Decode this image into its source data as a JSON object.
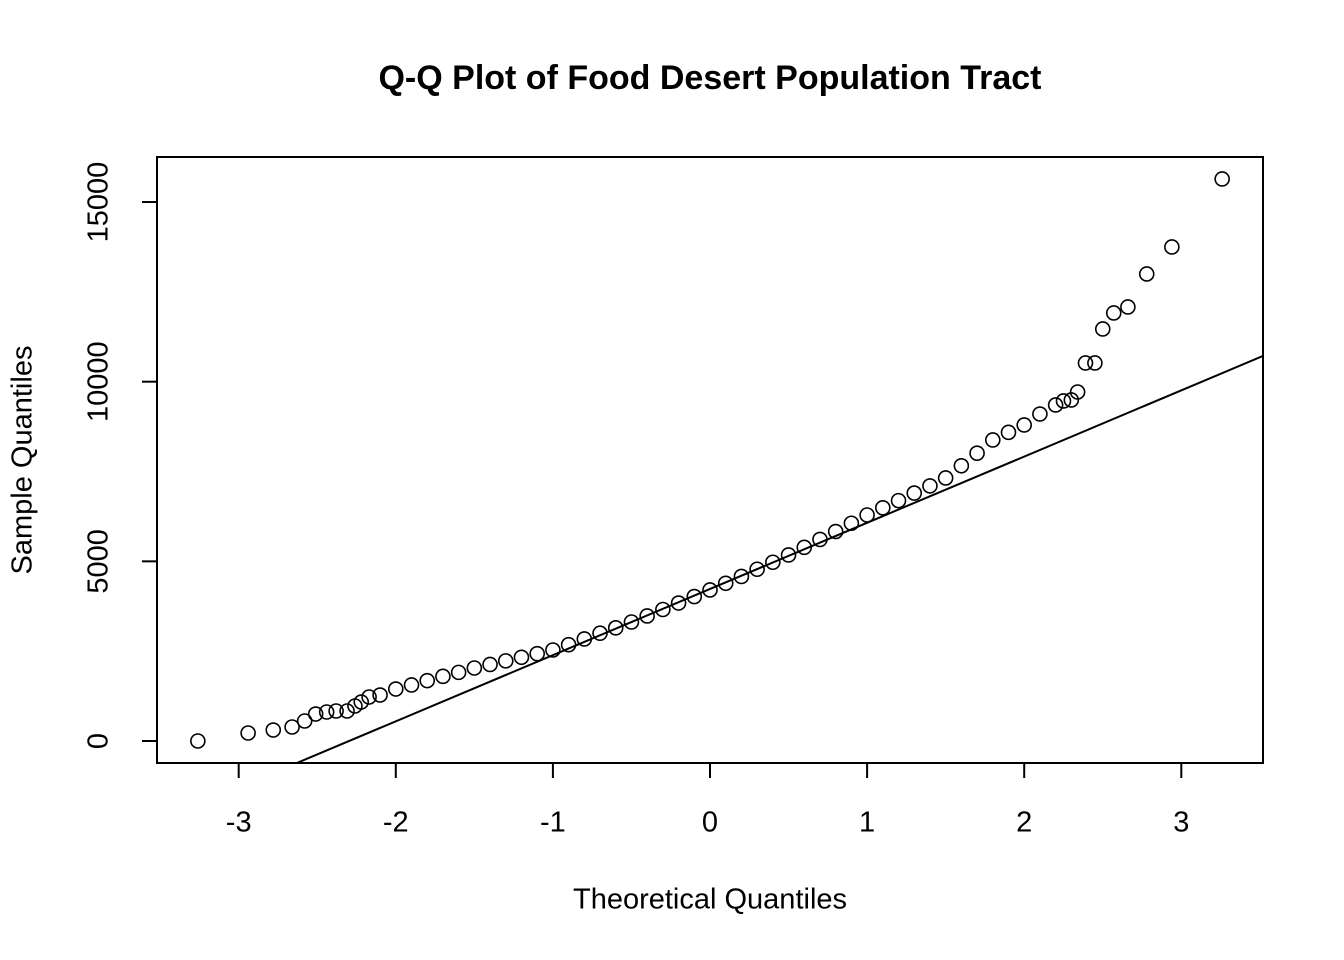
{
  "chart_data": {
    "type": "scatter",
    "title": "Q-Q Plot of Food Desert Population Tract",
    "x_label": "Theoretical Quantiles",
    "y_label": "Sample Quantiles",
    "x": [
      -3.26,
      -2.94,
      -2.78,
      -2.66,
      -2.58,
      -2.51,
      -2.44,
      -2.38,
      -2.31,
      -2.26,
      -2.22,
      -2.17,
      -2.1,
      -2.0,
      -1.9,
      -1.8,
      -1.7,
      -1.6,
      -1.5,
      -1.4,
      -1.3,
      -1.2,
      -1.1,
      -1.0,
      -0.9,
      -0.8,
      -0.7,
      -0.6,
      -0.5,
      -0.4,
      -0.3,
      -0.2,
      -0.1,
      0,
      0.1,
      0.2,
      0.3,
      0.4,
      0.5,
      0.6,
      0.7,
      0.8,
      0.9,
      1.0,
      1.1,
      1.2,
      1.3,
      1.4,
      1.5,
      1.6,
      1.7,
      1.8,
      1.9,
      2.0,
      2.1,
      2.2,
      2.25,
      2.3,
      2.34,
      2.39,
      2.45,
      2.5,
      2.57,
      2.66,
      2.78,
      2.94,
      3.26
    ],
    "y": [
      0,
      223,
      306,
      390,
      557,
      751,
      807,
      835,
      835,
      974,
      1085,
      1225,
      1280,
      1447,
      1560,
      1680,
      1800,
      1910,
      2032,
      2130,
      2230,
      2330,
      2430,
      2533,
      2680,
      2840,
      3000,
      3150,
      3312,
      3480,
      3660,
      3840,
      4020,
      4203,
      4390,
      4580,
      4780,
      4975,
      5177,
      5390,
      5610,
      5830,
      6060,
      6290,
      6490,
      6690,
      6900,
      7100,
      7320,
      7660,
      8010,
      8378,
      8590,
      8795,
      9100,
      9352,
      9463,
      9491,
      9713,
      10521,
      10521,
      11467,
      11912,
      12079,
      12998,
      13749,
      15642
    ],
    "color": "#000000",
    "reference_line": {
      "intercept": 4232,
      "slope": 1842
    },
    "xlim": [
      -3.52,
      3.52
    ],
    "ylim": [
      -612,
      16253
    ],
    "xticks": [
      -3,
      -2,
      -1,
      0,
      1,
      2,
      3
    ],
    "yticks": [
      0,
      5000,
      10000,
      15000
    ],
    "grid": false
  }
}
